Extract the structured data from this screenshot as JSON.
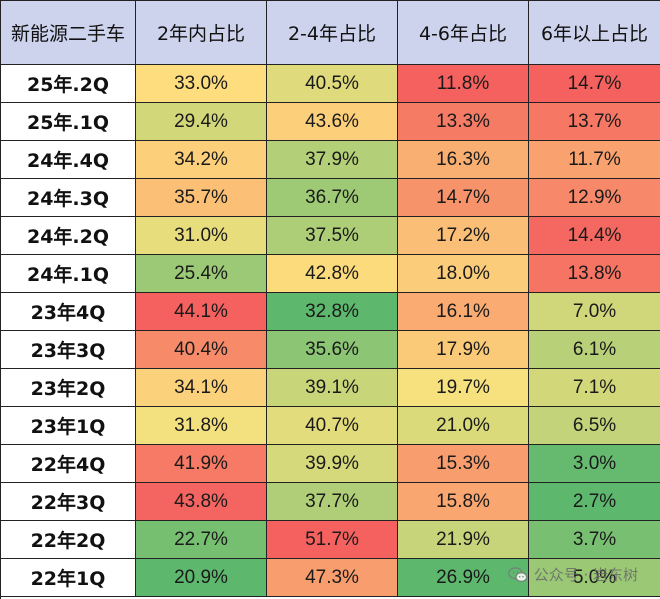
{
  "chart_data": {
    "type": "table",
    "header": [
      "新能源二手车",
      "2年内占比",
      "2-4年占比",
      "4-6年占比",
      "6年以上占比"
    ],
    "rows": [
      {
        "label": "25年.2Q",
        "values": [
          "33.0%",
          "40.5%",
          "11.8%",
          "14.7%"
        ]
      },
      {
        "label": "25年.1Q",
        "values": [
          "29.4%",
          "43.6%",
          "13.3%",
          "13.7%"
        ]
      },
      {
        "label": "24年.4Q",
        "values": [
          "34.2%",
          "37.9%",
          "16.3%",
          "11.7%"
        ]
      },
      {
        "label": "24年.3Q",
        "values": [
          "35.7%",
          "36.7%",
          "14.7%",
          "12.9%"
        ]
      },
      {
        "label": "24年.2Q",
        "values": [
          "31.0%",
          "37.5%",
          "17.2%",
          "14.4%"
        ]
      },
      {
        "label": "24年.1Q",
        "values": [
          "25.4%",
          "42.8%",
          "18.0%",
          "13.8%"
        ]
      },
      {
        "label": "23年4Q",
        "values": [
          "44.1%",
          "32.8%",
          "16.1%",
          "7.0%"
        ]
      },
      {
        "label": "23年3Q",
        "values": [
          "40.4%",
          "35.6%",
          "17.9%",
          "6.1%"
        ]
      },
      {
        "label": "23年2Q",
        "values": [
          "34.1%",
          "39.1%",
          "19.7%",
          "7.1%"
        ]
      },
      {
        "label": "23年1Q",
        "values": [
          "31.8%",
          "40.7%",
          "21.0%",
          "6.5%"
        ]
      },
      {
        "label": "22年4Q",
        "values": [
          "41.9%",
          "39.9%",
          "15.3%",
          "3.0%"
        ]
      },
      {
        "label": "22年3Q",
        "values": [
          "43.8%",
          "37.7%",
          "15.8%",
          "2.7%"
        ]
      },
      {
        "label": "22年2Q",
        "values": [
          "22.7%",
          "51.7%",
          "21.9%",
          "3.7%"
        ]
      },
      {
        "label": "22年1Q",
        "values": [
          "20.9%",
          "47.3%",
          "26.9%",
          "5.0%"
        ]
      }
    ],
    "color_scale": {
      "high_is_red_columns": [
        0,
        1,
        3
      ],
      "high_is_red_per_column": [
        true,
        true,
        false,
        true
      ],
      "low": "#5db86e",
      "mid": "#fde37f",
      "high": "#f4615f"
    },
    "header_color": "#cdd3ec"
  },
  "watermark": {
    "text": "公众号 · 岩东树",
    "icon": "wechat-icon"
  }
}
